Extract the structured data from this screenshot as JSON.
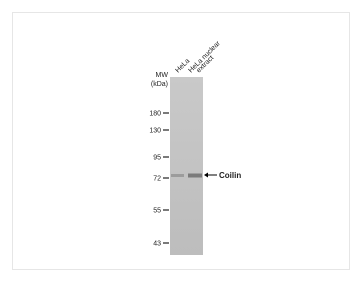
{
  "mw_label": [
    "MW",
    "(kDa)"
  ],
  "lanes": [
    [
      "HeLa"
    ],
    [
      "HeLa nuclear",
      "extract"
    ]
  ],
  "markers": [
    180,
    130,
    95,
    72,
    55,
    43
  ],
  "band_label": "Coilin"
}
